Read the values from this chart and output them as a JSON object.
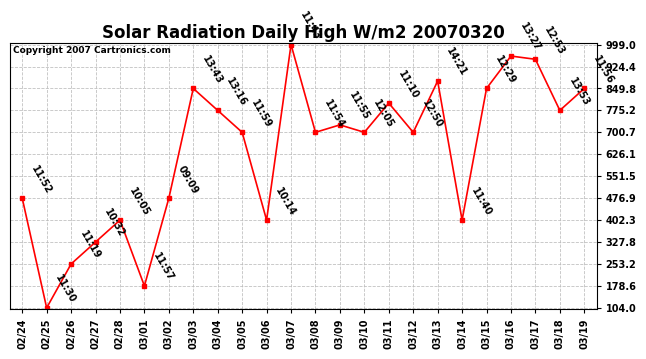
{
  "title": "Solar Radiation Daily High W/m2 20070320",
  "copyright": "Copyright 2007 Cartronics.com",
  "dates": [
    "02/24",
    "02/25",
    "02/26",
    "02/27",
    "02/28",
    "03/01",
    "03/02",
    "03/03",
    "03/04",
    "03/05",
    "03/06",
    "03/07",
    "03/08",
    "03/09",
    "03/10",
    "03/11",
    "03/12",
    "03/13",
    "03/14",
    "03/15",
    "03/16",
    "03/17",
    "03/18",
    "03/19"
  ],
  "values": [
    476.9,
    104.0,
    253.2,
    327.8,
    402.3,
    178.6,
    476.9,
    849.8,
    775.2,
    700.7,
    402.3,
    999.0,
    700.7,
    726.0,
    700.7,
    800.0,
    700.7,
    875.0,
    402.3,
    849.8,
    960.0,
    949.0,
    775.2,
    849.8
  ],
  "labels": [
    "11:52",
    "11:30",
    "11:19",
    "10:32",
    "10:05",
    "11:57",
    "09:09",
    "13:43",
    "13:16",
    "11:59",
    "10:14",
    "11:43",
    "11:54",
    "11:55",
    "12:05",
    "11:10",
    "12:50",
    "14:21",
    "11:40",
    "12:29",
    "13:27",
    "12:53",
    "13:53",
    "11:56"
  ],
  "ylim": [
    104.0,
    999.0
  ],
  "yticks": [
    104.0,
    178.6,
    253.2,
    327.8,
    402.3,
    476.9,
    551.5,
    626.1,
    700.7,
    775.2,
    849.8,
    924.4,
    999.0
  ],
  "line_color": "red",
  "marker_color": "red",
  "bg_color": "#ffffff",
  "grid_color": "#bbbbbb",
  "title_fontsize": 12,
  "tick_fontsize": 7,
  "label_fontsize": 7
}
